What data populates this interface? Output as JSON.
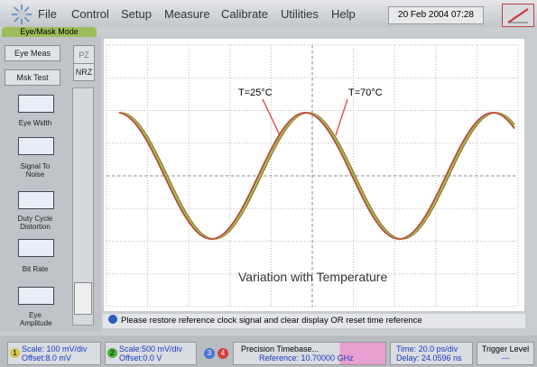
{
  "menu": [
    "File",
    "Control",
    "Setup",
    "Measure",
    "Calibrate",
    "Utilities",
    "Help"
  ],
  "datetime": "20 Feb 2004  07:28",
  "mode_tab": "Eye/Mask Mode",
  "side": {
    "eye_meas": "Eye Meas",
    "msk_test": "Msk Test",
    "pz": "PZ",
    "nrz": "NRZ",
    "buttons": [
      "Eye Width",
      "Signal To Noise",
      "Duty Cycle Distortion",
      "Bit Rate",
      "Eye Amplitude"
    ]
  },
  "display": {
    "label_25": "T=25°C",
    "label_70": "T=70°C",
    "caption": "Variation with Temperature"
  },
  "status": "Please restore reference clock signal and clear display OR reset time reference",
  "bottom": {
    "ch1": "1",
    "ch1_scale": "Scale: 100 mV/div",
    "ch1_offset": "Offset:8.0 mV",
    "ch2": "2",
    "ch2_scale": "Scale:500 mV/div",
    "ch2_offset": "Offset:0.0 V",
    "ch3": "3",
    "ch4": "4",
    "timebase": "Precision Timebase...",
    "reference": "Reference: 10.70000 GHz",
    "time": "Time: 20.0 ps/div",
    "delay": "Delay: 24.0596 ns",
    "trigger": "Trigger Level",
    "trigger_value": "---"
  }
}
